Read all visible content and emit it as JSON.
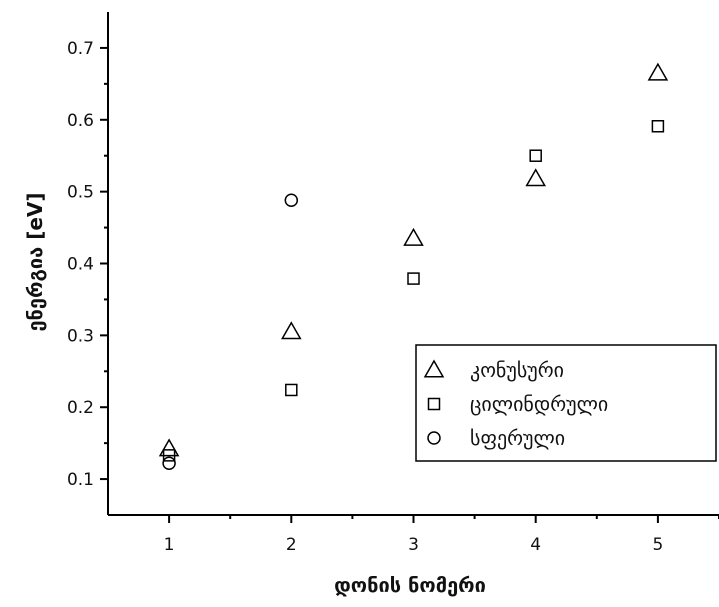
{
  "chart_data": {
    "type": "scatter",
    "xlabel": "დონის ნომერი",
    "ylabel": "ენერგია [eV]",
    "xlim": [
      0.5,
      5.5
    ],
    "ylim": [
      0.05,
      0.75
    ],
    "x_ticks": [
      "1",
      "2",
      "3",
      "4",
      "5"
    ],
    "y_ticks": [
      "0.1",
      "0.2",
      "0.3",
      "0.4",
      "0.5",
      "0.6",
      "0.7"
    ],
    "legend_position": "right-center",
    "grid": false,
    "series": [
      {
        "name": "კონუსური",
        "marker": "triangle",
        "x": [
          1,
          2,
          3,
          4,
          5
        ],
        "y": [
          0.142,
          0.305,
          0.435,
          0.518,
          0.665
        ]
      },
      {
        "name": "ცილინდრული",
        "marker": "square",
        "x": [
          1,
          2,
          3,
          4,
          5
        ],
        "y": [
          0.133,
          0.224,
          0.379,
          0.55,
          0.591
        ]
      },
      {
        "name": "სფერული",
        "marker": "circle",
        "x": [
          1,
          2
        ],
        "y": [
          0.122,
          0.488
        ]
      }
    ]
  }
}
